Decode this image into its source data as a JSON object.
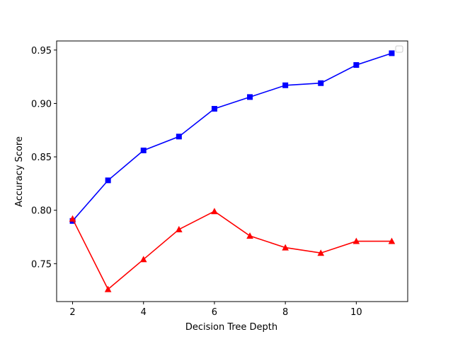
{
  "chart_data": {
    "type": "line",
    "title": "",
    "xlabel": "Decision Tree Depth",
    "ylabel": "Accuracy Score",
    "x": [
      2,
      3,
      4,
      5,
      6,
      7,
      8,
      9,
      10,
      11
    ],
    "xlim": [
      1.55,
      11.45
    ],
    "ylim": [
      0.7145,
      0.9585
    ],
    "xticks": [
      2,
      4,
      6,
      8,
      10
    ],
    "yticks": [
      0.75,
      0.8,
      0.85,
      0.9,
      0.95
    ],
    "ytick_labels": [
      "0.75",
      "0.80",
      "0.85",
      "0.90",
      "0.95"
    ],
    "grid": false,
    "legend": {
      "position": "top-right",
      "entries": []
    },
    "series": [
      {
        "color": "#0000ff",
        "marker": "square",
        "values": [
          0.79,
          0.828,
          0.856,
          0.869,
          0.895,
          0.906,
          0.917,
          0.919,
          0.936,
          0.947
        ]
      },
      {
        "color": "#ff0000",
        "marker": "triangle",
        "values": [
          0.792,
          0.726,
          0.754,
          0.782,
          0.799,
          0.776,
          0.765,
          0.76,
          0.771,
          0.771
        ]
      }
    ]
  }
}
